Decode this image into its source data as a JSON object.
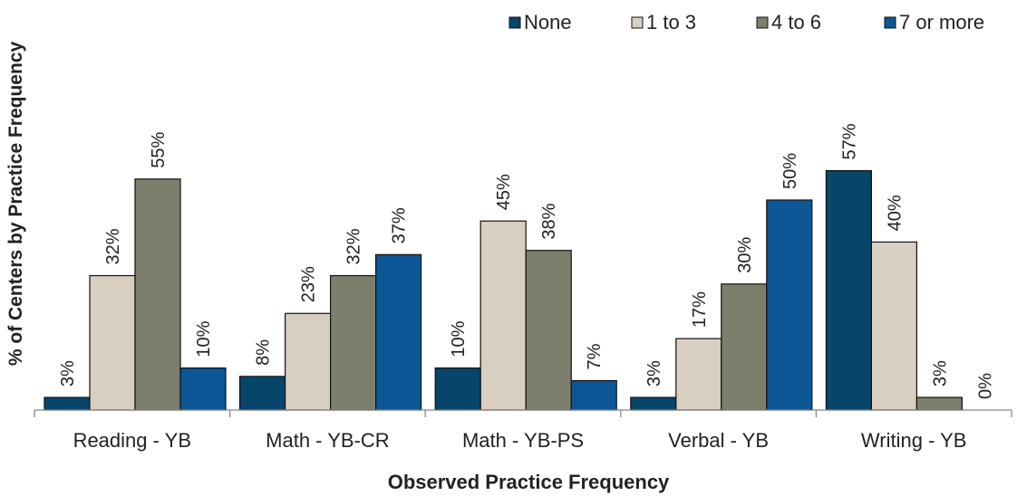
{
  "chart_data": {
    "type": "bar",
    "title": "",
    "xlabel": "Observed Practice Frequency",
    "ylabel": "% of Centers by Practice Frequency",
    "ylim": [
      0,
      60
    ],
    "grid": false,
    "legend_position": "top-right",
    "categories": [
      "Reading - YB",
      "Math - YB-CR",
      "Math - YB-PS",
      "Verbal - YB",
      "Writing - YB"
    ],
    "series": [
      {
        "name": "None",
        "color": "#08456b",
        "values": [
          3,
          8,
          10,
          3,
          57
        ],
        "labels": [
          "3%",
          "8%",
          "10%",
          "3%",
          "57%"
        ]
      },
      {
        "name": "1 to 3",
        "color": "#d9cfc0",
        "values": [
          32,
          23,
          45,
          17,
          40
        ],
        "labels": [
          "32%",
          "23%",
          "45%",
          "17%",
          "40%"
        ]
      },
      {
        "name": "4 to 6",
        "color": "#7d7f6d",
        "values": [
          55,
          32,
          38,
          30,
          3
        ],
        "labels": [
          "55%",
          "32%",
          "38%",
          "30%",
          "3%"
        ]
      },
      {
        "name": "7 or more",
        "color": "#0d5797",
        "values": [
          10,
          37,
          7,
          50,
          0
        ],
        "labels": [
          "10%",
          "37%",
          "7%",
          "50%",
          "0%"
        ]
      }
    ]
  }
}
